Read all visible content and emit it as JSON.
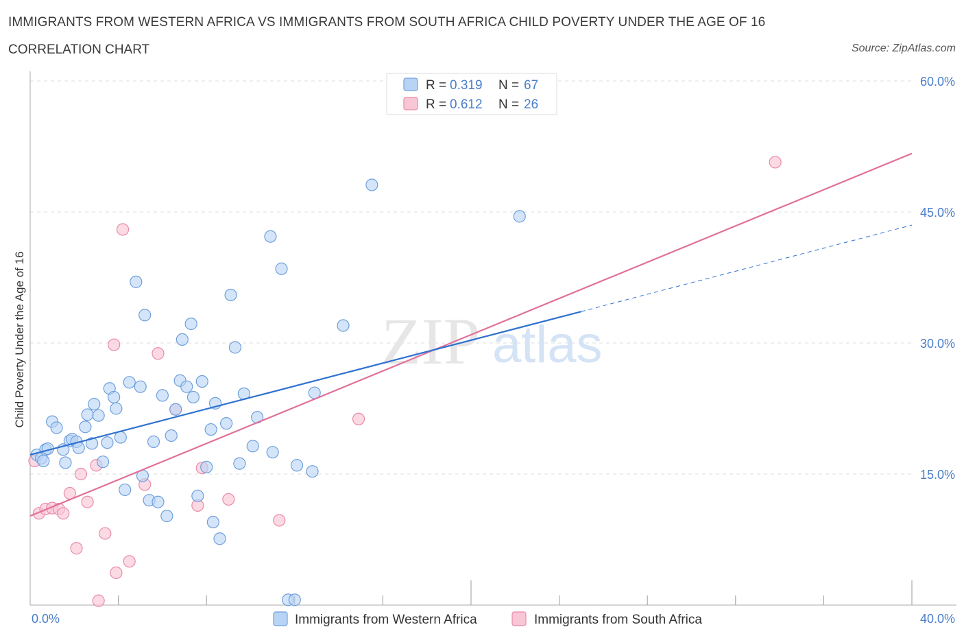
{
  "header": {
    "title": "IMMIGRANTS FROM WESTERN AFRICA VS IMMIGRANTS FROM SOUTH AFRICA CHILD POVERTY UNDER THE AGE OF 16",
    "subtitle": "CORRELATION CHART",
    "source": "Source: ZipAtlas.com"
  },
  "watermark": {
    "zip": "ZIP",
    "atlas": "atlas"
  },
  "legend_top": [
    {
      "r_label": "R = ",
      "r_value": "0.319",
      "n_label": "N = ",
      "n_value": "67"
    },
    {
      "r_label": "R = ",
      "r_value": "0.612",
      "n_label": "N = ",
      "n_value": "26"
    }
  ],
  "colors": {
    "series1_fill": "#b8d4f5",
    "series1_stroke": "#6e9fdc",
    "series1_line": "#2f72d0",
    "series2_fill": "#f9c6d6",
    "series2_stroke": "#e98aa8",
    "series2_line": "#e0709a",
    "tick_label": "#4a7ec9",
    "grid": "#dddddd",
    "axis": "#aaaaaa"
  },
  "chart_data": {
    "type": "scatter",
    "xlabel": "",
    "ylabel": "Child Poverty Under the Age of 16",
    "xlim": [
      0,
      40
    ],
    "ylim": [
      0,
      60
    ],
    "x_tick_labels": [
      "0.0%",
      "40.0%"
    ],
    "y_ticks": [
      15,
      30,
      45,
      60
    ],
    "y_tick_labels": [
      "15.0%",
      "30.0%",
      "45.0%",
      "60.0%"
    ],
    "grid": true,
    "legend_position": "bottom",
    "series": [
      {
        "name": "Immigrants from Western Africa",
        "r": 0.319,
        "n": 67,
        "trend": {
          "x0": 0,
          "y0": 17.2,
          "x1": 25,
          "y1": 33.6,
          "dashed_to_x": 40,
          "dashed_to_y": 43.5
        },
        "points": [
          [
            0.3,
            17.2
          ],
          [
            0.5,
            16.8
          ],
          [
            0.6,
            16.5
          ],
          [
            0.7,
            17.8
          ],
          [
            0.8,
            17.9
          ],
          [
            1.0,
            21.0
          ],
          [
            1.2,
            20.3
          ],
          [
            1.5,
            17.8
          ],
          [
            1.6,
            16.3
          ],
          [
            1.8,
            18.8
          ],
          [
            1.9,
            19.0
          ],
          [
            2.1,
            18.7
          ],
          [
            2.2,
            18.0
          ],
          [
            2.5,
            20.4
          ],
          [
            2.6,
            21.8
          ],
          [
            2.8,
            18.5
          ],
          [
            2.9,
            23.0
          ],
          [
            3.1,
            21.7
          ],
          [
            3.3,
            16.4
          ],
          [
            3.5,
            18.6
          ],
          [
            3.6,
            24.8
          ],
          [
            3.8,
            23.8
          ],
          [
            3.9,
            22.5
          ],
          [
            4.1,
            19.2
          ],
          [
            4.3,
            13.2
          ],
          [
            4.5,
            25.5
          ],
          [
            4.8,
            37.0
          ],
          [
            5.0,
            25.0
          ],
          [
            5.1,
            14.8
          ],
          [
            5.2,
            33.2
          ],
          [
            5.4,
            12.0
          ],
          [
            5.6,
            18.7
          ],
          [
            5.8,
            11.8
          ],
          [
            6.0,
            24.0
          ],
          [
            6.2,
            10.2
          ],
          [
            6.4,
            19.4
          ],
          [
            6.6,
            22.4
          ],
          [
            6.8,
            25.7
          ],
          [
            6.9,
            30.4
          ],
          [
            7.1,
            25.0
          ],
          [
            7.3,
            32.2
          ],
          [
            7.4,
            23.8
          ],
          [
            7.6,
            12.5
          ],
          [
            7.8,
            25.6
          ],
          [
            8.0,
            15.8
          ],
          [
            8.2,
            20.1
          ],
          [
            8.3,
            9.5
          ],
          [
            8.4,
            23.1
          ],
          [
            8.6,
            7.6
          ],
          [
            8.9,
            20.8
          ],
          [
            9.1,
            35.5
          ],
          [
            9.3,
            29.5
          ],
          [
            9.5,
            16.2
          ],
          [
            9.7,
            24.2
          ],
          [
            10.1,
            18.2
          ],
          [
            10.3,
            21.5
          ],
          [
            10.9,
            42.2
          ],
          [
            11.0,
            17.5
          ],
          [
            11.4,
            38.5
          ],
          [
            11.7,
            0.6
          ],
          [
            12.0,
            0.6
          ],
          [
            12.1,
            16.0
          ],
          [
            12.8,
            15.3
          ],
          [
            12.9,
            24.3
          ],
          [
            14.2,
            32.0
          ],
          [
            15.5,
            48.1
          ],
          [
            22.2,
            44.5
          ]
        ]
      },
      {
        "name": "Immigrants from South Africa",
        "r": 0.612,
        "n": 26,
        "trend": {
          "x0": 0,
          "y0": 10.2,
          "x1": 40,
          "y1": 51.7
        },
        "points": [
          [
            0.2,
            16.5
          ],
          [
            0.4,
            10.5
          ],
          [
            0.7,
            11.0
          ],
          [
            1.0,
            11.1
          ],
          [
            1.3,
            11.0
          ],
          [
            1.5,
            10.5
          ],
          [
            1.8,
            12.8
          ],
          [
            2.1,
            6.5
          ],
          [
            2.3,
            15.0
          ],
          [
            2.6,
            11.8
          ],
          [
            3.0,
            16.0
          ],
          [
            3.1,
            0.5
          ],
          [
            3.4,
            8.2
          ],
          [
            3.8,
            29.8
          ],
          [
            3.9,
            3.7
          ],
          [
            4.2,
            43.0
          ],
          [
            4.5,
            5.0
          ],
          [
            5.2,
            13.8
          ],
          [
            5.8,
            28.8
          ],
          [
            6.6,
            22.4
          ],
          [
            7.6,
            11.4
          ],
          [
            7.8,
            15.7
          ],
          [
            9.0,
            12.1
          ],
          [
            11.3,
            9.7
          ],
          [
            14.9,
            21.3
          ],
          [
            33.8,
            50.7
          ]
        ]
      }
    ]
  }
}
